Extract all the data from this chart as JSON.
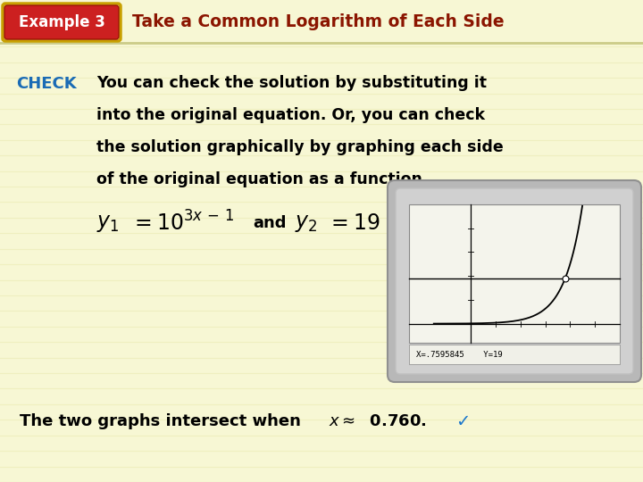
{
  "bg_color": "#f7f7d4",
  "stripe_color": "#efefc0",
  "example_badge_bg": "#cc2020",
  "example_badge_border": "#c8a000",
  "example_badge_text": "Example 3",
  "example_badge_text_color": "#ffffff",
  "title_text": "Take a Common Logarithm of Each Side",
  "title_color": "#8b1500",
  "header_sep_color": "#cccc88",
  "check_label": "CHECK",
  "check_color": "#1a6bb5",
  "body_lines": [
    "You can check the solution by substituting it",
    "into the original equation. Or, you can check",
    "the solution graphically by graphing each side",
    "of the original equation as a function."
  ],
  "body_color": "#000000",
  "footer_text": "The two graphs intersect when ",
  "footer_math": "x ≈  0.760.",
  "footer_checkmark": "✓",
  "footer_color": "#000000",
  "footer_check_color": "#1a77cc",
  "calc_outer_color": "#b8b8b8",
  "calc_inner_color": "#d0d0d0",
  "calc_screen_color": "#f4f4ec",
  "calc_statusbar_color": "#f0f0e8",
  "calc_status_text": "X=.7595845    Y=19"
}
